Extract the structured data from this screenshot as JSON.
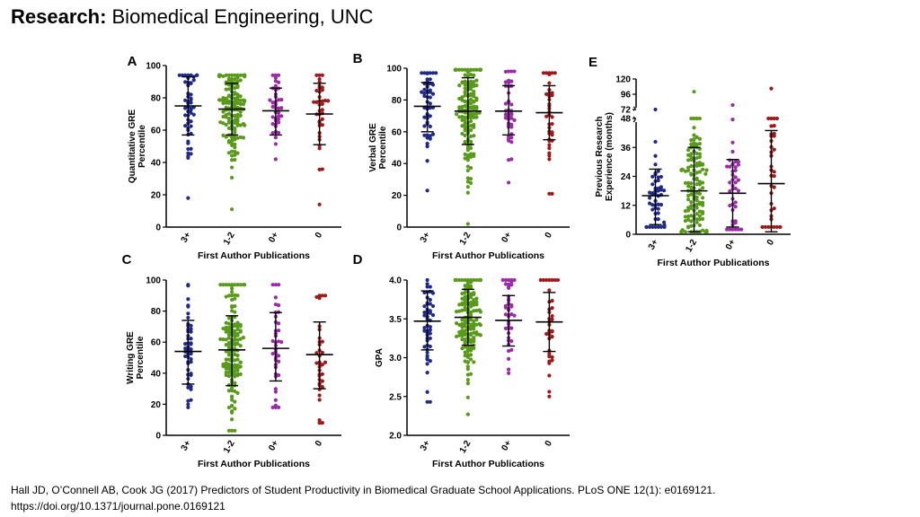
{
  "slide": {
    "title_bold": "Research:",
    "title_rest": " Biomedical Engineering, UNC",
    "citation_line1": "Hall JD, O’Connell AB, Cook JG (2017) Predictors of Student Productivity in Biomedical Graduate School Applications. PLoS ONE 12(1): e0169121.",
    "citation_line2": "https://doi.org/10.1371/journal.pone.0169121"
  },
  "colors": {
    "3+": "#1f2a8a",
    "1-2": "#5a9a1a",
    "0+": "#9a2aa8",
    "0": "#a01818"
  },
  "chart_data": [
    {
      "panel": "A",
      "type": "scatter",
      "title": "",
      "ylabel": "Quantitative GRE Percentile",
      "xlabel": "First Author Publications",
      "categories": [
        "3+",
        "1-2",
        "0+",
        "0"
      ],
      "ylim": [
        0,
        100
      ],
      "yticks": [
        0,
        20,
        40,
        60,
        80,
        100
      ],
      "ytick_labels": [
        "0",
        "20",
        "40",
        "60",
        "80",
        "100"
      ],
      "groups": [
        {
          "name": "3+",
          "n": 52,
          "min": 18,
          "max": 94,
          "mean": 75,
          "sd_low": 57,
          "sd_high": 93
        },
        {
          "name": "1-2",
          "n": 150,
          "min": 11,
          "max": 94,
          "mean": 73,
          "sd_low": 57,
          "sd_high": 89
        },
        {
          "name": "0+",
          "n": 42,
          "min": 42,
          "max": 94,
          "mean": 72,
          "sd_low": 57,
          "sd_high": 86
        },
        {
          "name": "0",
          "n": 38,
          "min": 14,
          "max": 94,
          "mean": 70,
          "sd_low": 51,
          "sd_high": 89
        }
      ]
    },
    {
      "panel": "B",
      "type": "scatter",
      "title": "",
      "ylabel": "Verbal GRE Percentile",
      "xlabel": "First Author Publications",
      "categories": [
        "3+",
        "1-2",
        "0+",
        "0"
      ],
      "ylim": [
        0,
        100
      ],
      "yticks": [
        0,
        20,
        40,
        60,
        80,
        100
      ],
      "ytick_labels": [
        "0",
        "20",
        "40",
        "60",
        "80",
        "100"
      ],
      "groups": [
        {
          "name": "3+",
          "n": 52,
          "min": 23,
          "max": 97,
          "mean": 76,
          "sd_low": 60,
          "sd_high": 91
        },
        {
          "name": "1-2",
          "n": 150,
          "min": 2,
          "max": 99,
          "mean": 73,
          "sd_low": 52,
          "sd_high": 94
        },
        {
          "name": "0+",
          "n": 42,
          "min": 28,
          "max": 98,
          "mean": 73,
          "sd_low": 58,
          "sd_high": 89
        },
        {
          "name": "0",
          "n": 38,
          "min": 21,
          "max": 97,
          "mean": 72,
          "sd_low": 55,
          "sd_high": 89
        }
      ]
    },
    {
      "panel": "C",
      "type": "scatter",
      "title": "",
      "ylabel": "Writing GRE Percentile",
      "xlabel": "First Author Publications",
      "categories": [
        "3+",
        "1-2",
        "0+",
        "0"
      ],
      "ylim": [
        0,
        100
      ],
      "yticks": [
        0,
        20,
        40,
        60,
        80,
        100
      ],
      "ytick_labels": [
        "0",
        "20",
        "40",
        "60",
        "80",
        "100"
      ],
      "groups": [
        {
          "name": "3+",
          "n": 50,
          "min": 18,
          "max": 97,
          "mean": 54,
          "sd_low": 33,
          "sd_high": 74
        },
        {
          "name": "1-2",
          "n": 150,
          "min": 3,
          "max": 97,
          "mean": 55,
          "sd_low": 32,
          "sd_high": 77
        },
        {
          "name": "0+",
          "n": 40,
          "min": 18,
          "max": 97,
          "mean": 56,
          "sd_low": 35,
          "sd_high": 79
        },
        {
          "name": "0",
          "n": 36,
          "min": 8,
          "max": 90,
          "mean": 52,
          "sd_low": 30,
          "sd_high": 73
        }
      ]
    },
    {
      "panel": "D",
      "type": "scatter",
      "title": "",
      "ylabel": "GPA",
      "xlabel": "First Author Publications",
      "categories": [
        "3+",
        "1-2",
        "0+",
        "0"
      ],
      "ylim": [
        2.0,
        4.0
      ],
      "yticks": [
        2.0,
        2.5,
        3.0,
        3.5,
        4.0
      ],
      "ytick_labels": [
        "2.0",
        "2.5",
        "3.0",
        "3.5",
        "4.0"
      ],
      "groups": [
        {
          "name": "3+",
          "n": 52,
          "min": 2.43,
          "max": 4.0,
          "mean": 3.47,
          "sd_low": 3.1,
          "sd_high": 3.86
        },
        {
          "name": "1-2",
          "n": 150,
          "min": 2.27,
          "max": 4.0,
          "mean": 3.52,
          "sd_low": 3.16,
          "sd_high": 3.88
        },
        {
          "name": "0+",
          "n": 42,
          "min": 2.8,
          "max": 4.0,
          "mean": 3.48,
          "sd_low": 3.15,
          "sd_high": 3.8
        },
        {
          "name": "0",
          "n": 36,
          "min": 2.5,
          "max": 4.0,
          "mean": 3.46,
          "sd_low": 3.08,
          "sd_high": 3.84
        }
      ]
    },
    {
      "panel": "E",
      "type": "scatter",
      "title": "",
      "ylabel": "Previous Research Experience (months)",
      "xlabel": "First Author Publications",
      "categories": [
        "3+",
        "1-2",
        "0+",
        "0"
      ],
      "ylim": [
        0,
        120
      ],
      "axis_break": [
        48,
        72
      ],
      "yticks": [
        0,
        12,
        24,
        36,
        48,
        72,
        96,
        120
      ],
      "ytick_labels": [
        "0",
        "12",
        "24",
        "36",
        "48",
        "72",
        "96",
        "120"
      ],
      "groups": [
        {
          "name": "3+",
          "n": 52,
          "min": 3,
          "max": 60,
          "mean": 16,
          "sd_low": 4,
          "sd_high": 27
        },
        {
          "name": "1-2",
          "n": 150,
          "min": 1,
          "max": 100,
          "mean": 18,
          "sd_low": 1,
          "sd_high": 36
        },
        {
          "name": "0+",
          "n": 42,
          "min": 2,
          "max": 79,
          "mean": 17,
          "sd_low": 3,
          "sd_high": 31
        },
        {
          "name": "0",
          "n": 38,
          "min": 3,
          "max": 105,
          "mean": 21,
          "sd_low": 1,
          "sd_high": 43
        }
      ]
    }
  ]
}
